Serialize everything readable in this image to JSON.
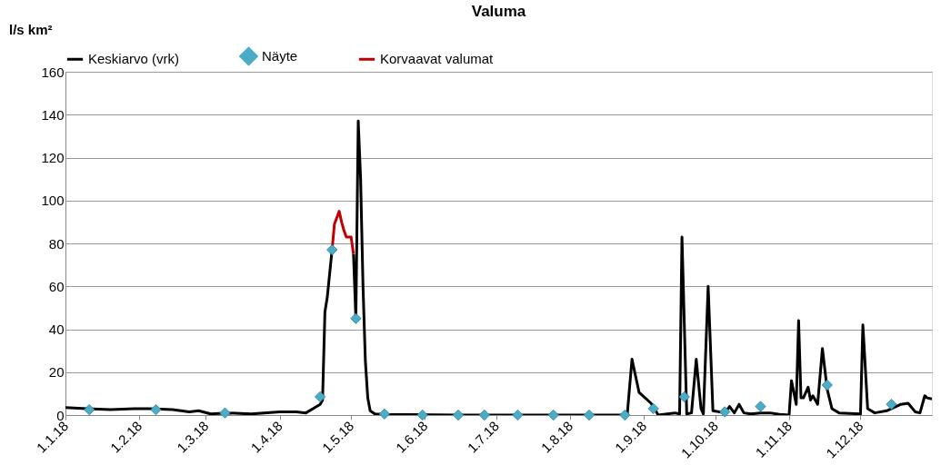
{
  "chart_data": {
    "type": "line",
    "title": "Valuma",
    "ylabel": "l/s km²",
    "ylim": [
      0,
      160
    ],
    "yticks": [
      0,
      20,
      40,
      60,
      80,
      100,
      120,
      140,
      160
    ],
    "xlim": [
      "2018-01-01",
      "2018-12-31"
    ],
    "xticks": [
      {
        "value": "2018-01-01",
        "label": "1.1.18"
      },
      {
        "value": "2018-02-01",
        "label": "1.2.18"
      },
      {
        "value": "2018-03-01",
        "label": "1.3.18"
      },
      {
        "value": "2018-04-01",
        "label": "1.4.18"
      },
      {
        "value": "2018-05-01",
        "label": "1.5.18"
      },
      {
        "value": "2018-06-01",
        "label": "1.6.18"
      },
      {
        "value": "2018-07-01",
        "label": "1.7.18"
      },
      {
        "value": "2018-08-01",
        "label": "1.8.18"
      },
      {
        "value": "2018-09-01",
        "label": "1.9.18"
      },
      {
        "value": "2018-10-01",
        "label": "1.10.18"
      },
      {
        "value": "2018-11-01",
        "label": "1.11.18"
      },
      {
        "value": "2018-12-01",
        "label": "1.12.18"
      }
    ],
    "grid": "y",
    "legend": "top",
    "line_style": "solid",
    "series": [
      {
        "name": "Keskiarvo (vrk)",
        "color": "#000000",
        "x": [
          "2018-01-01",
          "2018-01-10",
          "2018-01-20",
          "2018-01-30",
          "2018-02-05",
          "2018-02-15",
          "2018-02-22",
          "2018-02-26",
          "2018-03-03",
          "2018-03-10",
          "2018-03-20",
          "2018-04-01",
          "2018-04-08",
          "2018-04-12",
          "2018-04-15",
          "2018-04-18",
          "2018-04-19",
          "2018-04-20",
          "2018-04-21",
          "2018-04-23",
          "2018-04-24",
          "2018-05-02",
          "2018-05-03",
          "2018-05-04",
          "2018-05-05",
          "2018-05-06",
          "2018-05-07",
          "2018-05-08",
          "2018-05-09",
          "2018-05-11",
          "2018-05-15",
          "2018-06-15",
          "2018-07-15",
          "2018-08-15",
          "2018-08-25",
          "2018-08-27",
          "2018-08-30",
          "2018-09-04",
          "2018-09-06",
          "2018-09-07",
          "2018-09-14",
          "2018-09-16",
          "2018-09-17",
          "2018-09-19",
          "2018-09-21",
          "2018-09-23",
          "2018-09-25",
          "2018-09-26",
          "2018-09-28",
          "2018-09-30",
          "2018-10-05",
          "2018-10-07",
          "2018-10-09",
          "2018-10-11",
          "2018-10-13",
          "2018-10-16",
          "2018-10-20",
          "2018-10-24",
          "2018-10-28",
          "2018-11-01",
          "2018-11-02",
          "2018-11-04",
          "2018-11-05",
          "2018-11-06",
          "2018-11-07",
          "2018-11-09",
          "2018-11-10",
          "2018-11-11",
          "2018-11-13",
          "2018-11-15",
          "2018-11-17",
          "2018-11-19",
          "2018-11-22",
          "2018-12-01",
          "2018-12-02",
          "2018-12-04",
          "2018-12-07",
          "2018-12-12",
          "2018-12-18",
          "2018-12-21",
          "2018-12-24",
          "2018-12-26",
          "2018-12-28",
          "2018-12-29",
          "2018-12-31"
        ],
        "values": [
          3.5,
          3,
          2.5,
          3,
          3,
          2.5,
          1.5,
          2,
          0.5,
          1,
          0.5,
          1.5,
          1.5,
          1,
          3,
          5,
          7,
          48,
          55,
          77,
          null,
          75,
          45,
          137,
          110,
          60,
          25,
          8,
          2,
          0.5,
          0.3,
          0,
          0,
          0,
          0,
          26,
          10.5,
          5.5,
          2,
          0,
          1,
          0.5,
          83,
          0.5,
          1,
          26,
          3,
          0.5,
          60,
          2,
          1,
          4,
          1,
          5,
          1,
          0.5,
          1,
          1,
          0.3,
          0,
          16,
          5,
          44,
          8,
          8,
          13,
          7,
          9,
          5,
          31,
          12,
          3,
          1,
          0.5,
          42,
          3,
          1,
          2,
          5,
          5.5,
          1.5,
          1,
          9,
          8,
          7.5
        ]
      },
      {
        "name": "Näyte",
        "type": "scatter",
        "marker": "diamond",
        "color": "#4bacc6",
        "x": [
          "2018-01-11",
          "2018-02-08",
          "2018-03-09",
          "2018-04-18",
          "2018-04-23",
          "2018-05-03",
          "2018-05-15",
          "2018-05-31",
          "2018-06-15",
          "2018-06-26",
          "2018-07-10",
          "2018-07-25",
          "2018-08-09",
          "2018-08-24",
          "2018-09-05",
          "2018-09-18",
          "2018-10-05",
          "2018-10-20",
          "2018-11-17",
          "2018-12-14"
        ],
        "values": [
          2.5,
          2.5,
          1,
          8.5,
          77,
          45,
          0.5,
          0,
          0,
          0,
          0,
          0,
          0,
          0,
          3,
          8.5,
          1.5,
          4,
          14,
          5
        ]
      },
      {
        "name": "Korvaavat valumat",
        "color": "#c00000",
        "x": [
          "2018-04-23",
          "2018-04-24",
          "2018-04-25",
          "2018-04-26",
          "2018-04-27",
          "2018-04-28",
          "2018-04-29",
          "2018-04-30",
          "2018-05-01",
          "2018-05-02"
        ],
        "values": [
          77,
          89,
          92,
          95,
          90,
          86,
          83,
          83,
          83,
          75
        ]
      }
    ]
  }
}
